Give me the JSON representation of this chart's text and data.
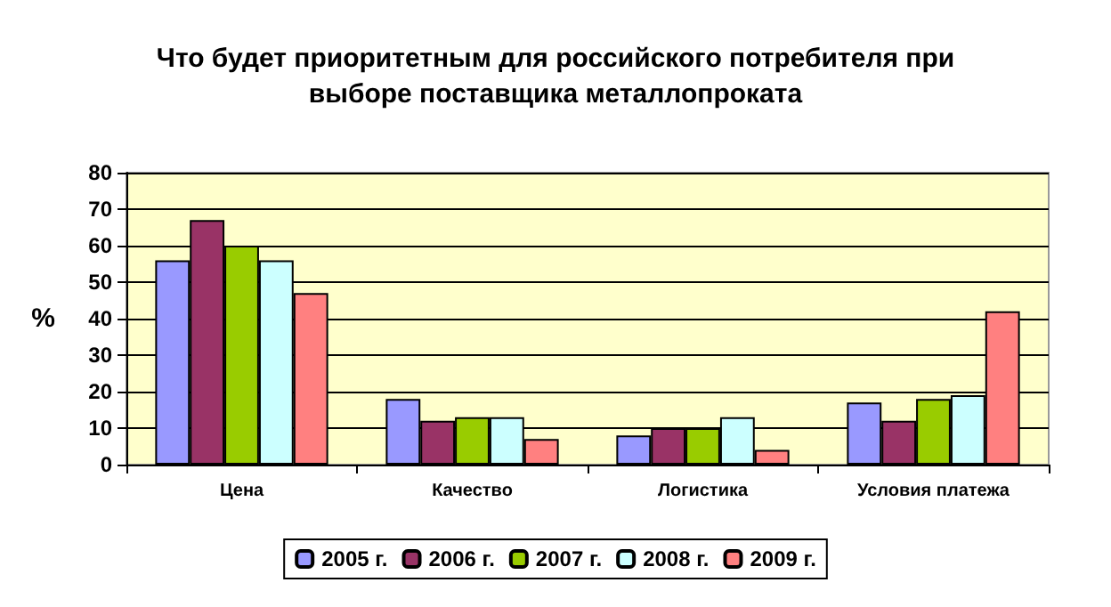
{
  "chart_data": {
    "type": "bar",
    "title": "Что будет приоритетным для российского потребителя при\nвыборе поставщика металлопроката",
    "ylabel": "%",
    "categories": [
      "Цена",
      "Качество",
      "Логистика",
      "Условия платежа"
    ],
    "series": [
      {
        "name": "2005 г.",
        "color": "#9999ff",
        "values": [
          56,
          18,
          8,
          17
        ]
      },
      {
        "name": "2006 г.",
        "color": "#993366",
        "values": [
          67,
          12,
          10,
          12
        ]
      },
      {
        "name": "2007 г.",
        "color": "#99cc00",
        "values": [
          60,
          13,
          10,
          18
        ]
      },
      {
        "name": "2008 г.",
        "color": "#ccffff",
        "values": [
          56,
          13,
          13,
          19
        ]
      },
      {
        "name": "2009 г.",
        "color": "#ff8080",
        "values": [
          47,
          7,
          4,
          42
        ]
      }
    ],
    "ylim": [
      0,
      80
    ],
    "yticks": [
      0,
      10,
      20,
      30,
      40,
      50,
      60,
      70,
      80
    ],
    "grid": "y",
    "legend": "bottom"
  }
}
